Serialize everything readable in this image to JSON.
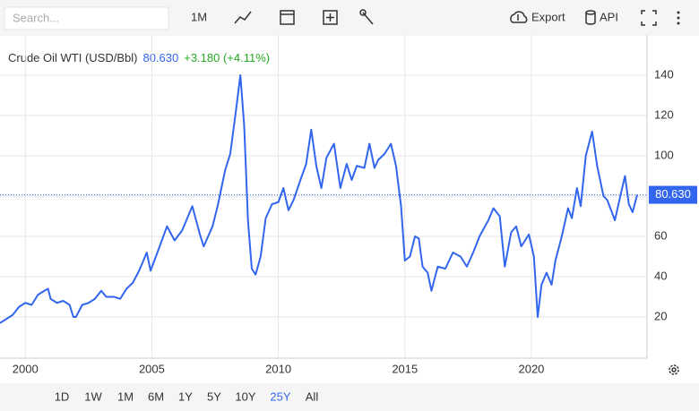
{
  "toolbar": {
    "search_placeholder": "Search...",
    "interval": "1M",
    "export": "Export",
    "api": "API"
  },
  "range_buttons": [
    "1D",
    "1W",
    "1M",
    "6M",
    "1Y",
    "5Y",
    "10Y",
    "25Y",
    "All"
  ],
  "active_range": 7,
  "chart_data": {
    "type": "line",
    "title": "Crude Oil WTI (USD/Bbl)",
    "last_value_label": "80.630",
    "change_label": "+3.180 (+4.11%)",
    "color": "#3366ee",
    "grid": true,
    "xlim": [
      1999,
      2024.57
    ],
    "xticks": [
      2000,
      2005,
      2010,
      2015,
      2020
    ],
    "ylim": [
      0,
      160
    ],
    "yticks": [
      20,
      40,
      60,
      80,
      100,
      120,
      140
    ],
    "x": [
      1999.0,
      1999.25,
      1999.5,
      1999.75,
      2000.0,
      2000.25,
      2000.5,
      2000.75,
      2000.9,
      2001.0,
      2001.25,
      2001.5,
      2001.75,
      2001.9,
      2002.0,
      2002.25,
      2002.5,
      2002.75,
      2003.0,
      2003.2,
      2003.5,
      2003.75,
      2004.0,
      2004.25,
      2004.5,
      2004.8,
      2004.95,
      2005.25,
      2005.6,
      2005.9,
      2006.2,
      2006.6,
      2006.9,
      2007.05,
      2007.4,
      2007.6,
      2007.9,
      2008.1,
      2008.3,
      2008.5,
      2008.65,
      2008.8,
      2008.95,
      2009.1,
      2009.3,
      2009.5,
      2009.75,
      2010.0,
      2010.2,
      2010.4,
      2010.6,
      2010.9,
      2011.1,
      2011.3,
      2011.5,
      2011.7,
      2011.9,
      2012.2,
      2012.45,
      2012.7,
      2012.9,
      2013.1,
      2013.4,
      2013.6,
      2013.8,
      2013.95,
      2014.2,
      2014.45,
      2014.65,
      2014.85,
      2015.0,
      2015.2,
      2015.4,
      2015.55,
      2015.7,
      2015.9,
      2016.05,
      2016.3,
      2016.6,
      2016.9,
      2017.2,
      2017.45,
      2017.7,
      2017.95,
      2018.3,
      2018.5,
      2018.75,
      2018.95,
      2019.2,
      2019.4,
      2019.6,
      2019.9,
      2020.1,
      2020.25,
      2020.4,
      2020.6,
      2020.8,
      2020.95,
      2021.2,
      2021.45,
      2021.6,
      2021.8,
      2021.95,
      2022.15,
      2022.4,
      2022.6,
      2022.85,
      2023.0,
      2023.3,
      2023.55,
      2023.7,
      2023.85,
      2024.0,
      2024.18
    ],
    "values": [
      17,
      19,
      21,
      25,
      27,
      26,
      31,
      33,
      34,
      29,
      27,
      28,
      26,
      20,
      20,
      26,
      27,
      29,
      33,
      30,
      30,
      29,
      34,
      37,
      43,
      52,
      43,
      53,
      65,
      58,
      63,
      75,
      61,
      55,
      65,
      75,
      93,
      101,
      120,
      140,
      115,
      68,
      44,
      41,
      50,
      69,
      76,
      77,
      84,
      73,
      78,
      89,
      96,
      113,
      95,
      84,
      99,
      106,
      84,
      96,
      88,
      95,
      94,
      106,
      94,
      98,
      101,
      106,
      95,
      75,
      48,
      50,
      60,
      59,
      45,
      42,
      33,
      45,
      44,
      52,
      50,
      45,
      52,
      60,
      68,
      74,
      70,
      45,
      62,
      65,
      55,
      61,
      50,
      20,
      36,
      42,
      36,
      48,
      60,
      74,
      69,
      84,
      75,
      100,
      112,
      95,
      80,
      78,
      68,
      82,
      90,
      76,
      72,
      80.63
    ]
  }
}
